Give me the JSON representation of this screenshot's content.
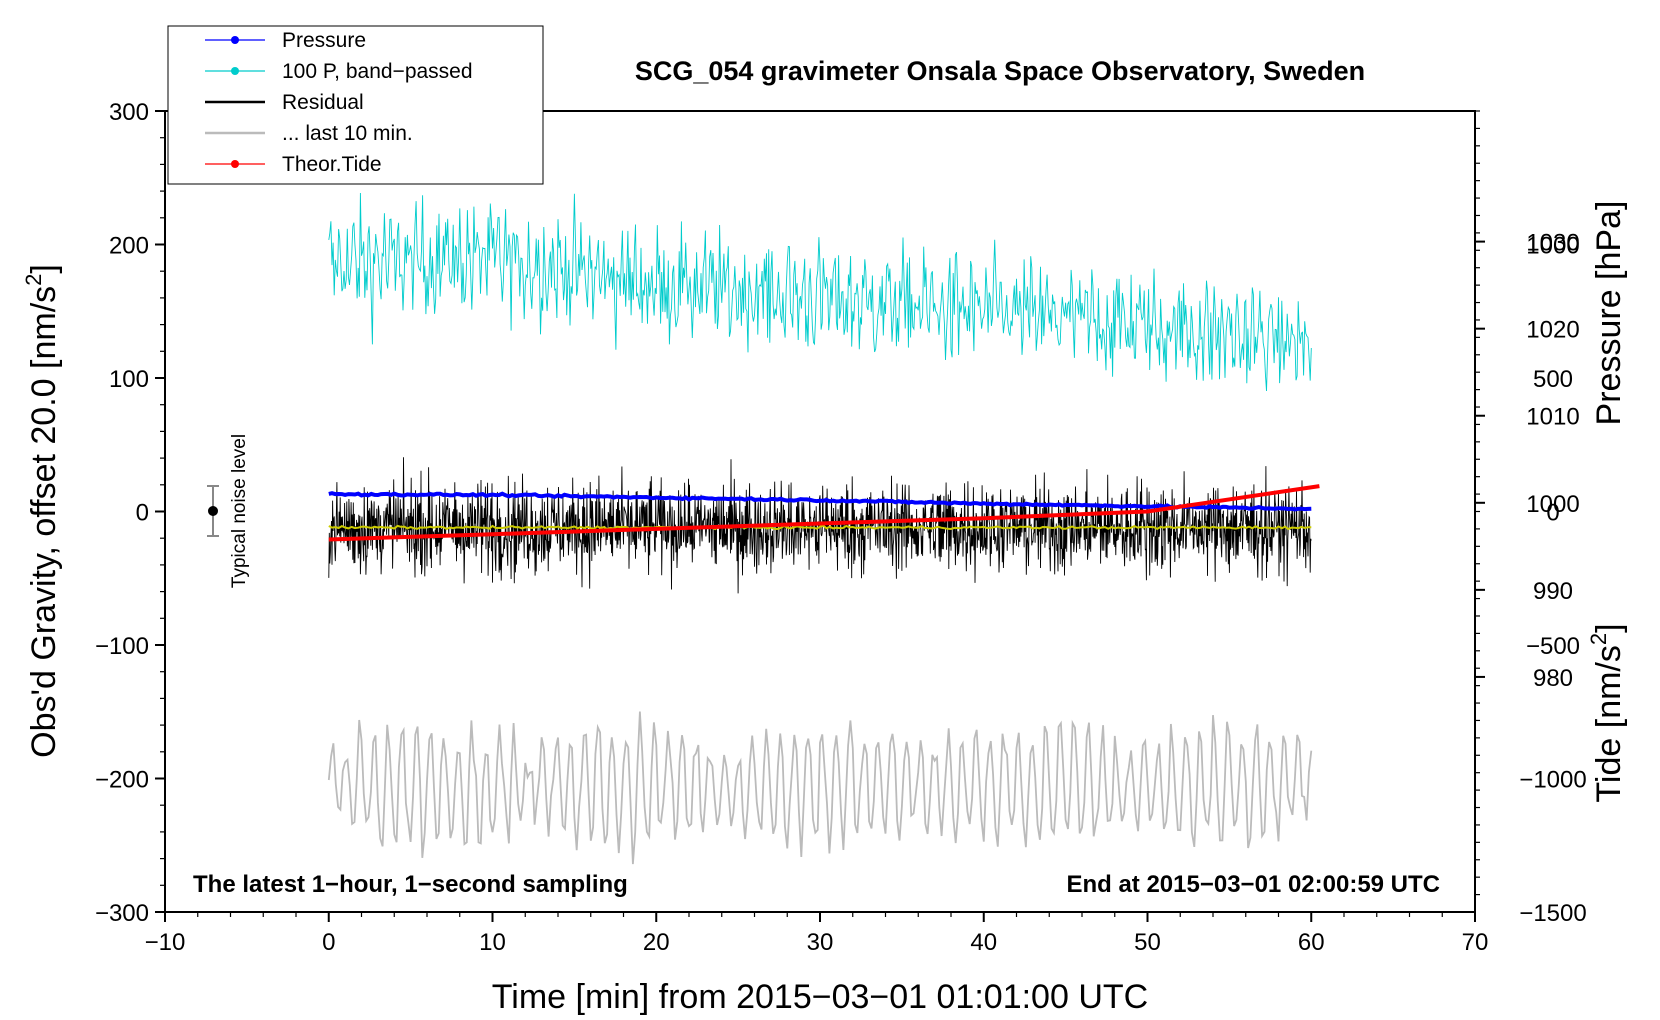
{
  "chart_data": {
    "type": "line",
    "title": "SCG_054 gravimeter Onsala Space Observatory, Sweden",
    "xlabel": "Time [min] from 2015−03−01 01:01:00 UTC",
    "ylabel": "Obs'd Gravity, offset 20.0 [nm/s",
    "ylabel_sup": "2",
    "ylabel_end": "]",
    "xlim": [
      -10,
      70
    ],
    "ylim": [
      -300,
      300
    ],
    "x_ticks": [
      -10,
      0,
      10,
      20,
      30,
      40,
      50,
      60,
      70
    ],
    "x_tick_labels": [
      "−10",
      "0",
      "10",
      "20",
      "30",
      "40",
      "50",
      "60",
      "70"
    ],
    "y_ticks": [
      -300,
      -200,
      -100,
      0,
      100,
      200,
      300
    ],
    "y_tick_labels": [
      "−300",
      "−200",
      "−100",
      "0",
      "100",
      "200",
      "300"
    ],
    "pressure_axis": {
      "label": "Pressure [hPa]",
      "ticks": [
        980,
        990,
        1000,
        1010,
        1020,
        1030
      ],
      "tick_labels": [
        "980",
        "990",
        "1000",
        "1010",
        "1020",
        "1030"
      ],
      "range": [
        953.0,
        1045.0
      ]
    },
    "tide_axis": {
      "label": "Tide [nm/s",
      "label_sup": "2",
      "label_end": "]",
      "ticks": [
        -1500,
        -1000,
        -500,
        0,
        500,
        1000
      ],
      "tick_labels": [
        "−1500",
        "−1000",
        "−500",
        "0",
        "500",
        "1000"
      ],
      "range": [
        -1500,
        1500
      ]
    },
    "legend": {
      "position": "top-left",
      "entries": [
        {
          "label": "Pressure",
          "color": "#0000ff",
          "marker": true
        },
        {
          "label": "100 P, band−passed",
          "color": "#00cccc",
          "marker": true
        },
        {
          "label": "Residual",
          "color": "#000000",
          "marker": false
        },
        {
          "label": "... last 10 min.",
          "color": "#bbbbbb",
          "marker": false
        },
        {
          "label": "Theor.Tide",
          "color": "#ff0000",
          "marker": true
        }
      ]
    },
    "series": [
      {
        "name": "Pressure",
        "unit": "hPa",
        "color": "#0000ff",
        "x": [
          0,
          10,
          20,
          30,
          40,
          50,
          60
        ],
        "values": [
          1001.0,
          1000.9,
          1000.6,
          1000.3,
          999.9,
          999.6,
          999.3
        ]
      },
      {
        "name": "100 P, band−passed",
        "unit": "nm/s2",
        "color": "#00cccc",
        "x_range": [
          0,
          60
        ],
        "mean_values": [
          185,
          190,
          170,
          160,
          150,
          140,
          125
        ],
        "amplitude": 45
      },
      {
        "name": "Residual",
        "unit": "nm/s2",
        "color": "#000000",
        "x_range": [
          0,
          60
        ],
        "mean": -12,
        "amplitude": 35
      },
      {
        "name": "Residual mean",
        "unit": "nm/s2",
        "color": "#cccc00",
        "x": [
          0,
          60
        ],
        "values": [
          -12,
          -12
        ]
      },
      {
        "name": "... last 10 min.",
        "unit": "nm/s2",
        "color": "#bbbbbb",
        "x_range": [
          0,
          60
        ],
        "mean": -205,
        "amplitude": 45
      },
      {
        "name": "Theor.Tide",
        "unit": "nm/s2",
        "color": "#ff0000",
        "x": [
          0,
          10,
          20,
          30,
          40,
          50,
          60.5
        ],
        "values": [
          -105,
          -85,
          -65,
          -45,
          -25,
          0,
          95
        ]
      }
    ],
    "noise_level": {
      "label": "Typical noise level",
      "x": -7,
      "y": 0,
      "error": 20
    },
    "annotations": {
      "left": "The latest 1−hour, 1−second sampling",
      "right": "End at 2015−03−01 02:00:59 UTC"
    }
  }
}
